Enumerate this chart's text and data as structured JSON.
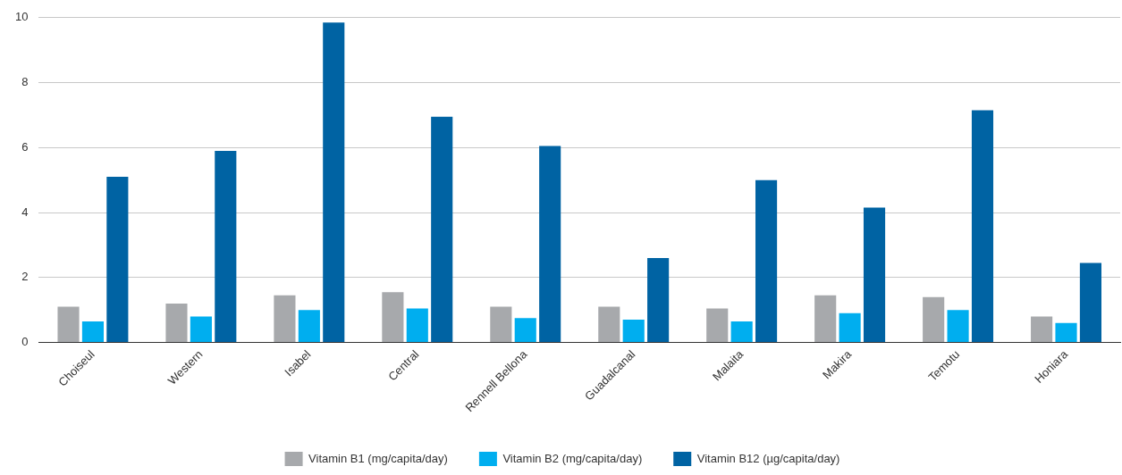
{
  "chart_data": {
    "type": "bar",
    "categories": [
      "Choiseul",
      "Western",
      "Isabel",
      "Central",
      "Rennell Bellona",
      "Guadalcanal",
      "Malaita",
      "Makira",
      "Temotu",
      "Honiara"
    ],
    "series": [
      {
        "name": "Vitamin B1 (mg/capita/day)",
        "color": "#a7a9ac",
        "values": [
          1.1,
          1.2,
          1.45,
          1.55,
          1.1,
          1.1,
          1.05,
          1.45,
          1.4,
          0.8
        ]
      },
      {
        "name": "Vitamin B2 (mg/capita/day)",
        "color": "#00aeef",
        "values": [
          0.65,
          0.8,
          1.0,
          1.05,
          0.75,
          0.7,
          0.65,
          0.9,
          1.0,
          0.6
        ]
      },
      {
        "name": "Vitamin B12 (µg/capita/day)",
        "color": "#0063a3",
        "values": [
          5.1,
          5.9,
          9.85,
          6.95,
          6.05,
          2.6,
          5.0,
          4.15,
          7.15,
          2.45
        ]
      }
    ],
    "ylim": [
      0,
      10
    ],
    "yticks": [
      0,
      2,
      4,
      6,
      8,
      10
    ],
    "grid": "y",
    "legend": "bottom"
  }
}
